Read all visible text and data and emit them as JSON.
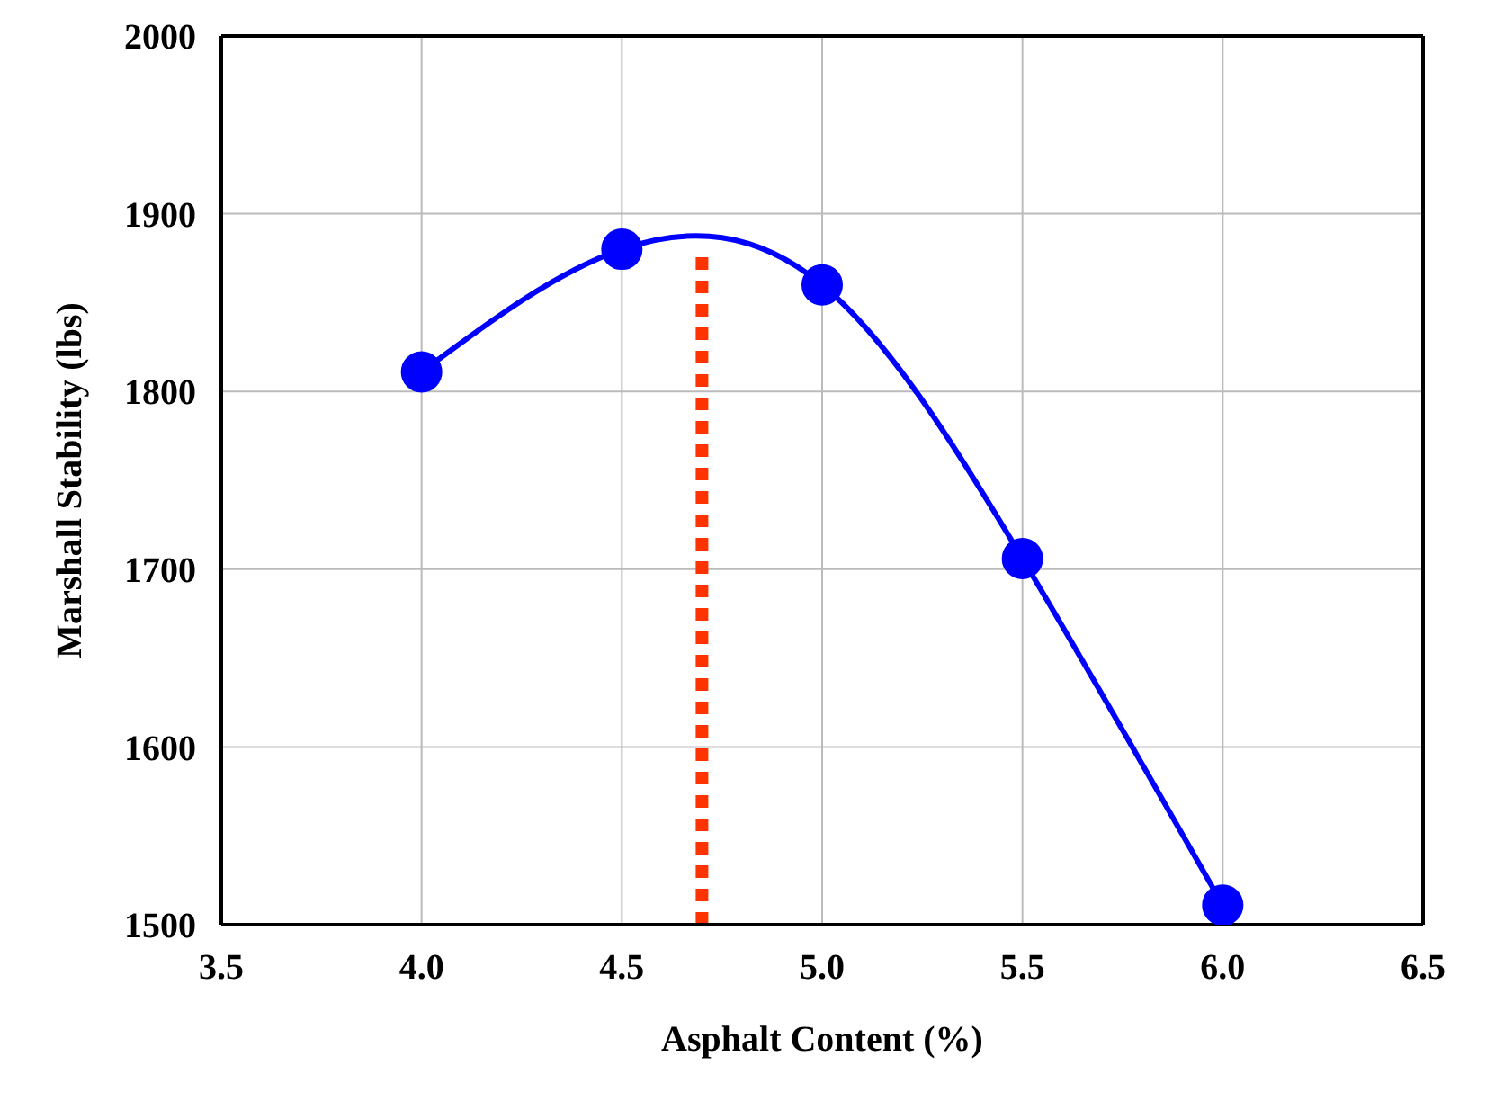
{
  "chart_data": {
    "type": "line",
    "xlabel": "Asphalt Content (%)",
    "ylabel": "Marshall Stability (lbs)",
    "x": [
      4.0,
      4.5,
      5.0,
      5.5,
      6.0
    ],
    "series": [
      {
        "color": "#0000ff",
        "values": [
          1811,
          1880,
          1860,
          1706,
          1511
        ]
      }
    ],
    "xlim": [
      3.5,
      6.5
    ],
    "xticks": [
      {
        "value": 3.5,
        "label": "3.5"
      },
      {
        "value": 4,
        "label": "4.0"
      },
      {
        "value": 4.5,
        "label": "4.5"
      },
      {
        "value": 5,
        "label": "5.0"
      },
      {
        "value": 5.5,
        "label": "5.5"
      },
      {
        "value": 6,
        "label": "6.0"
      },
      {
        "value": 6.5,
        "label": "6.5"
      }
    ],
    "ylim": [
      1500,
      2000
    ],
    "yticks": [
      1500,
      1600,
      1700,
      1800,
      1900,
      2000
    ],
    "ref_lines": [
      {
        "axis": "x",
        "value": 4.7,
        "color": "#ff3300",
        "line_style": "dotted"
      }
    ],
    "grid": true,
    "marker": "circle",
    "line_style": "solid"
  }
}
